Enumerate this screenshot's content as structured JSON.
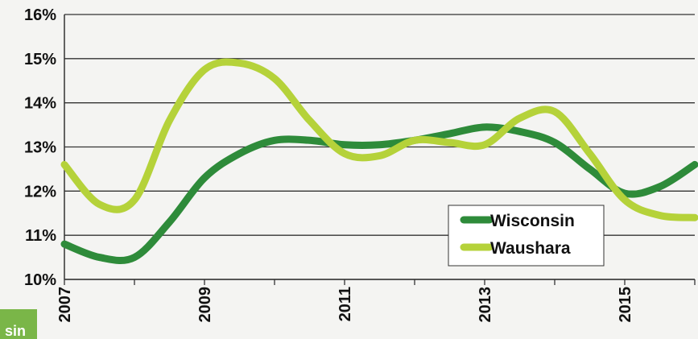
{
  "chart_data": {
    "type": "line",
    "x": [
      2007,
      2008,
      2009,
      2010,
      2011,
      2012,
      2013,
      2014,
      2015,
      2016
    ],
    "xticks": [
      "2007",
      "2009",
      "2011",
      "2013",
      "2015"
    ],
    "yticks": [
      "10%",
      "11%",
      "12%",
      "13%",
      "14%",
      "15%",
      "16%"
    ],
    "ylim": [
      10,
      16
    ],
    "xlim": [
      2007,
      2016
    ],
    "grid": "horizontal",
    "legend_position": "bottom-right",
    "series": [
      {
        "name": "Wisconsin",
        "color": "#2e8b3a",
        "x": [
          2007,
          2007.5,
          2008,
          2008.5,
          2009,
          2009.5,
          2010,
          2010.5,
          2011,
          2011.5,
          2012,
          2012.5,
          2013,
          2013.5,
          2014,
          2014.5,
          2015,
          2015.5,
          2016
        ],
        "values": [
          10.8,
          10.5,
          10.5,
          11.3,
          12.3,
          12.85,
          13.15,
          13.15,
          13.05,
          13.05,
          13.15,
          13.3,
          13.45,
          13.35,
          13.1,
          12.5,
          11.95,
          12.1,
          12.6
        ]
      },
      {
        "name": "Waushara",
        "color": "#b5d23a",
        "x": [
          2007,
          2007.5,
          2008,
          2008.5,
          2009,
          2009.5,
          2010,
          2010.5,
          2011,
          2011.5,
          2012,
          2012.5,
          2013,
          2013.5,
          2014,
          2014.5,
          2015,
          2015.5,
          2016
        ],
        "values": [
          12.6,
          11.7,
          11.8,
          13.6,
          14.75,
          14.9,
          14.55,
          13.6,
          12.85,
          12.8,
          13.15,
          13.1,
          13.05,
          13.65,
          13.8,
          12.85,
          11.8,
          11.45,
          11.4
        ]
      }
    ]
  },
  "corner_label": "sin"
}
